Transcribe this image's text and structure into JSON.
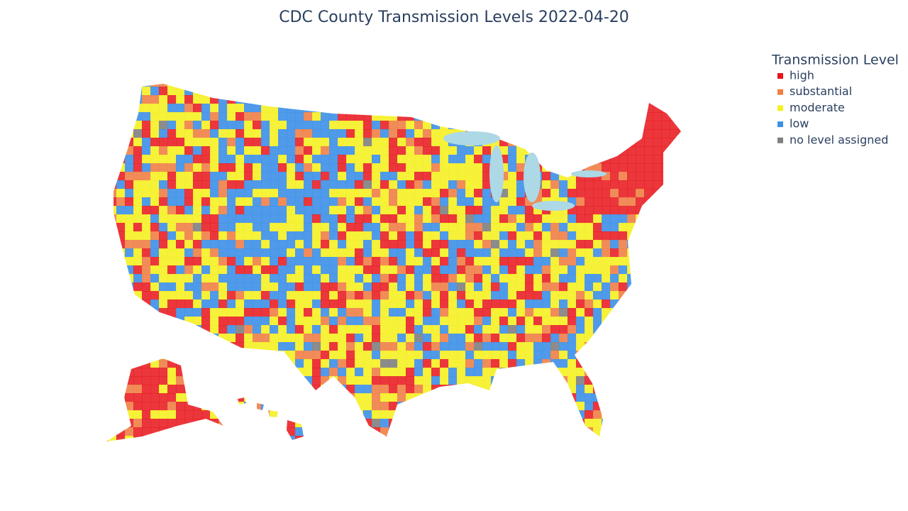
{
  "title": "CDC County Transmission Levels 2022-04-20",
  "legend": {
    "title": "Transmission Level",
    "items": [
      {
        "name": "high",
        "color": "#e8141a"
      },
      {
        "name": "substantial",
        "color": "#f07f47"
      },
      {
        "name": "moderate",
        "color": "#f5f023"
      },
      {
        "name": "low",
        "color": "#3d8fe8"
      },
      {
        "name": "no level assigned",
        "color": "#7f7f7f"
      }
    ]
  }
}
